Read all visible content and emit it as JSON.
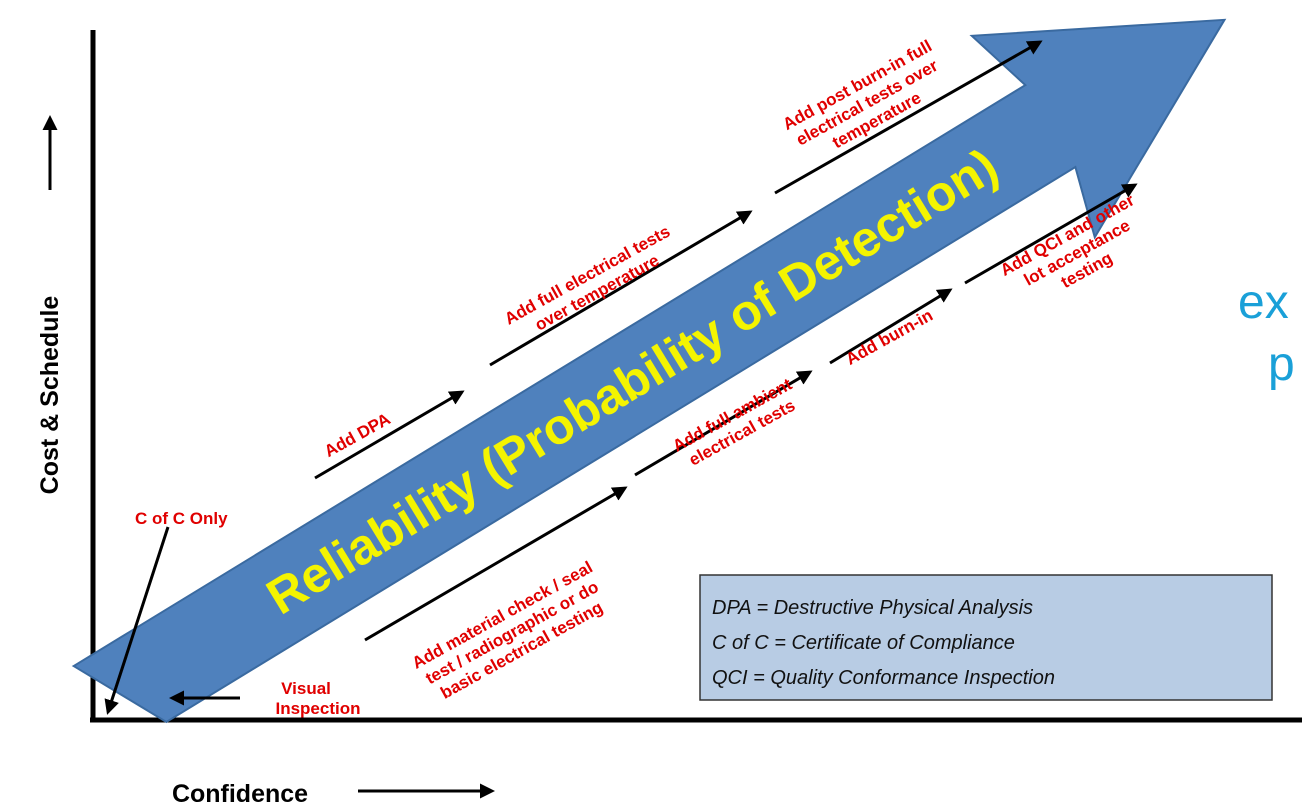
{
  "axes": {
    "y_label": "Cost & Schedule",
    "x_label": "Confidence"
  },
  "main_arrow_label": "Reliability (Probability of Detection)",
  "steps": [
    {
      "lines": [
        "C of C Only"
      ]
    },
    {
      "lines": [
        "Visual",
        "Inspection"
      ]
    },
    {
      "lines": [
        "Add material check / seal",
        "test / radiographic or do",
        "basic electrical testing"
      ]
    },
    {
      "lines": [
        "Add DPA"
      ]
    },
    {
      "lines": [
        "Add full ambient",
        "electrical tests"
      ]
    },
    {
      "lines": [
        "Add full electrical tests",
        "over temperature"
      ]
    },
    {
      "lines": [
        "Add burn-in"
      ]
    },
    {
      "lines": [
        "Add post burn-in full",
        "electrical tests over",
        "temperature"
      ]
    },
    {
      "lines": [
        "Add QCI and other",
        "lot acceptance",
        "testing"
      ]
    }
  ],
  "legend": [
    "DPA = Destructive Physical Analysis",
    "C of C = Certificate of Compliance",
    "QCI = Quality Conformance Inspection"
  ],
  "cropped_text": [
    "ex",
    "p"
  ]
}
